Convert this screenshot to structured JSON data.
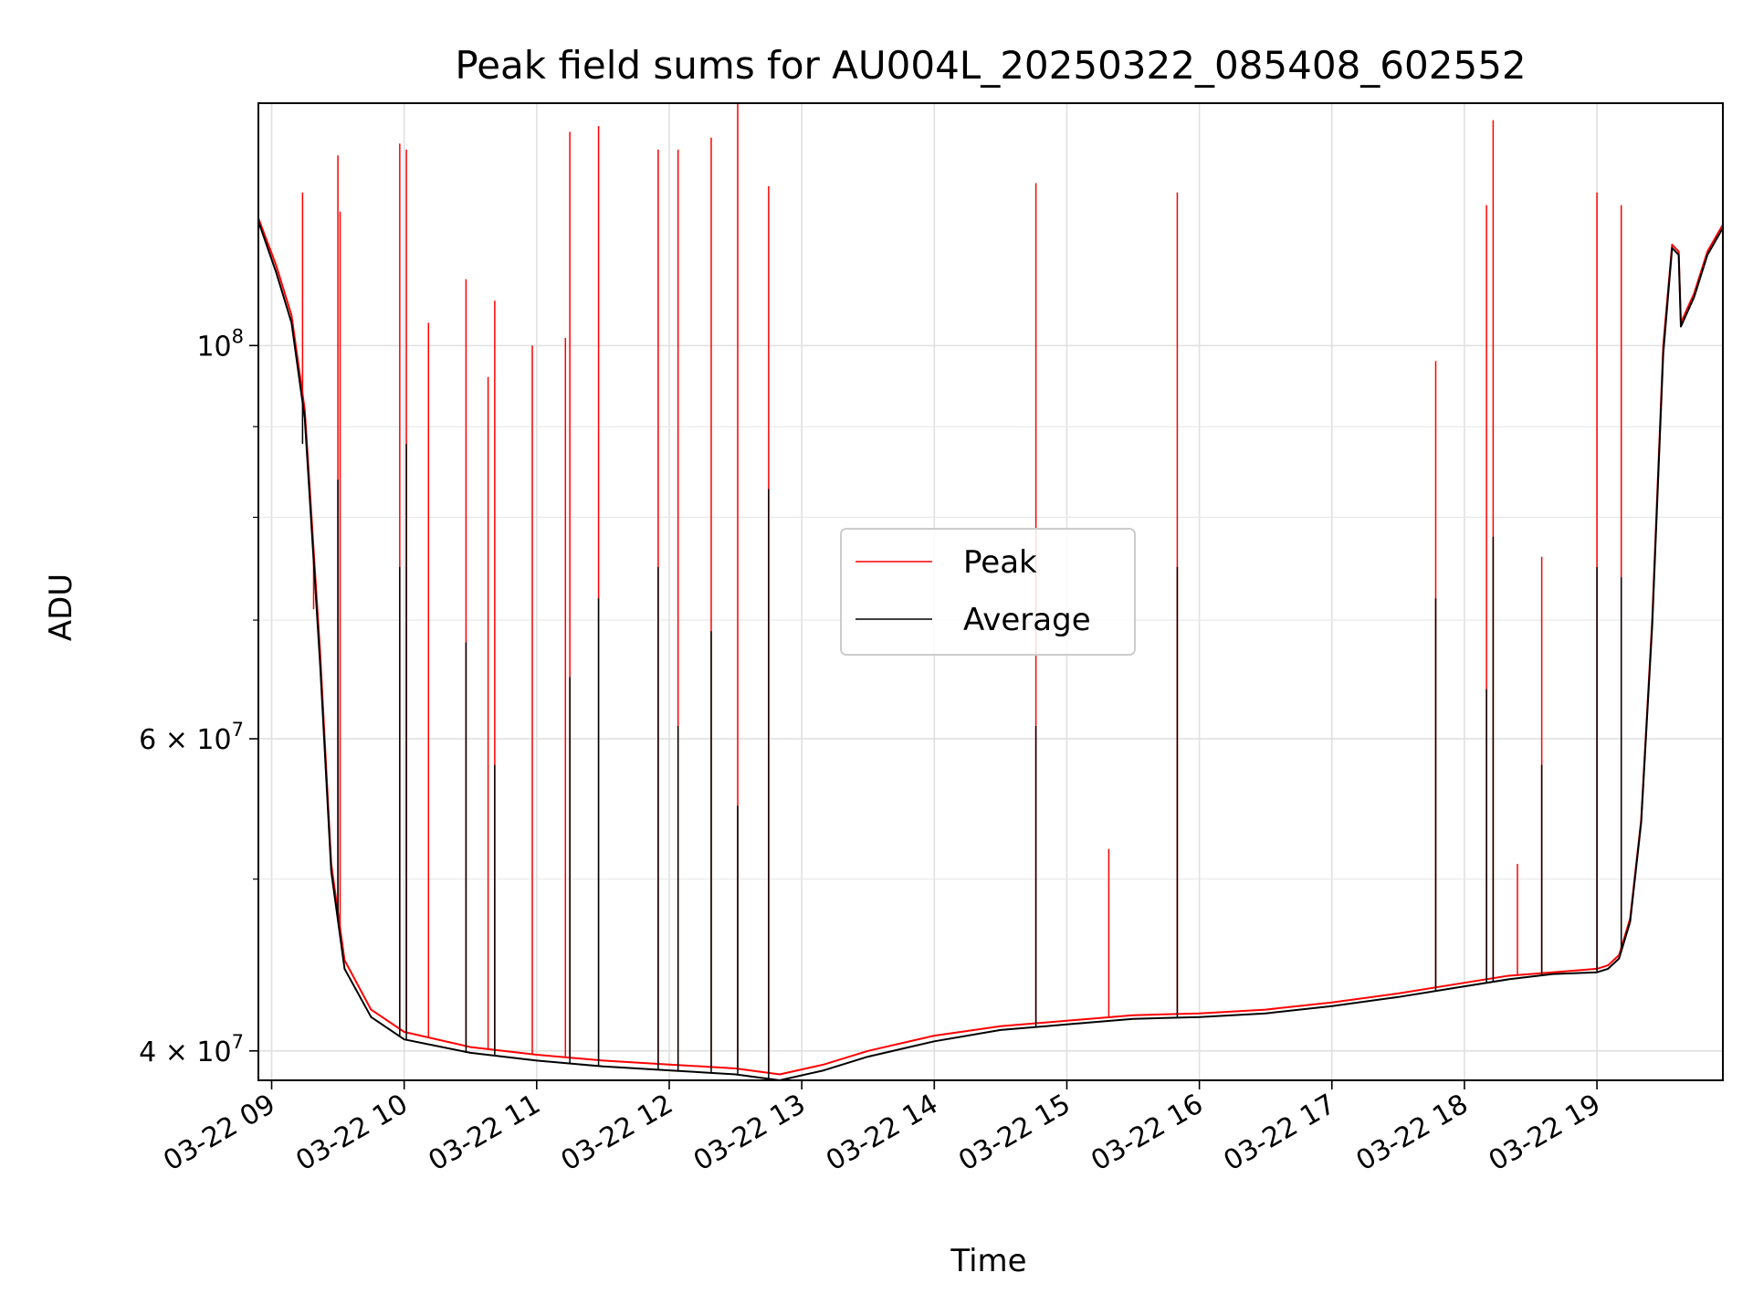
{
  "chart_data": {
    "type": "line",
    "title": "Peak field sums for AU004L_20250322_085408_602552",
    "xlabel": "Time",
    "ylabel": "ADU",
    "yscale": "log",
    "xlim": [
      "2025-03-22 08:54",
      "2025-03-22 19:57"
    ],
    "ylim": [
      38500000,
      137000000
    ],
    "grid": true,
    "legend_position": "center",
    "x_ticks": [
      {
        "label": "03-22 09",
        "value": "2025-03-22 09:00"
      },
      {
        "label": "03-22 10",
        "value": "2025-03-22 10:00"
      },
      {
        "label": "03-22 11",
        "value": "2025-03-22 11:00"
      },
      {
        "label": "03-22 12",
        "value": "2025-03-22 12:00"
      },
      {
        "label": "03-22 13",
        "value": "2025-03-22 13:00"
      },
      {
        "label": "03-22 14",
        "value": "2025-03-22 14:00"
      },
      {
        "label": "03-22 15",
        "value": "2025-03-22 15:00"
      },
      {
        "label": "03-22 16",
        "value": "2025-03-22 16:00"
      },
      {
        "label": "03-22 17",
        "value": "2025-03-22 17:00"
      },
      {
        "label": "03-22 18",
        "value": "2025-03-22 18:00"
      },
      {
        "label": "03-22 19",
        "value": "2025-03-22 19:00"
      }
    ],
    "y_major_ticks": [
      {
        "value": 40000000,
        "base": "4",
        "exp": "7"
      },
      {
        "value": 60000000,
        "base": "6",
        "exp": "7"
      },
      {
        "value": 100000000,
        "base": "",
        "exp": "8"
      }
    ],
    "y_minor_ticks": [
      50000000,
      70000000,
      80000000,
      90000000
    ],
    "series": [
      {
        "name": "Peak",
        "color": "#ff0000",
        "baseline": [
          [
            "2025-03-22 08:54",
            118000000
          ],
          [
            "2025-03-22 09:02",
            111000000
          ],
          [
            "2025-03-22 09:09",
            104000000
          ],
          [
            "2025-03-22 09:15",
            92000000
          ],
          [
            "2025-03-22 09:22",
            67000000
          ],
          [
            "2025-03-22 09:27",
            51000000
          ],
          [
            "2025-03-22 09:33",
            45000000
          ],
          [
            "2025-03-22 09:45",
            42200000
          ],
          [
            "2025-03-22 10:00",
            41000000
          ],
          [
            "2025-03-22 10:30",
            40200000
          ],
          [
            "2025-03-22 11:00",
            39800000
          ],
          [
            "2025-03-22 11:30",
            39500000
          ],
          [
            "2025-03-22 12:00",
            39300000
          ],
          [
            "2025-03-22 12:30",
            39100000
          ],
          [
            "2025-03-22 12:50",
            38800000
          ],
          [
            "2025-03-22 13:10",
            39300000
          ],
          [
            "2025-03-22 13:30",
            40000000
          ],
          [
            "2025-03-22 14:00",
            40800000
          ],
          [
            "2025-03-22 14:30",
            41300000
          ],
          [
            "2025-03-22 15:00",
            41600000
          ],
          [
            "2025-03-22 15:30",
            41900000
          ],
          [
            "2025-03-22 16:00",
            42000000
          ],
          [
            "2025-03-22 16:30",
            42200000
          ],
          [
            "2025-03-22 17:00",
            42600000
          ],
          [
            "2025-03-22 17:30",
            43100000
          ],
          [
            "2025-03-22 18:00",
            43700000
          ],
          [
            "2025-03-22 18:20",
            44100000
          ],
          [
            "2025-03-22 18:40",
            44300000
          ],
          [
            "2025-03-22 19:00",
            44500000
          ],
          [
            "2025-03-22 19:05",
            44700000
          ],
          [
            "2025-03-22 19:10",
            45300000
          ],
          [
            "2025-03-22 19:15",
            47500000
          ],
          [
            "2025-03-22 19:20",
            54000000
          ],
          [
            "2025-03-22 19:25",
            70000000
          ],
          [
            "2025-03-22 19:30",
            100000000
          ],
          [
            "2025-03-22 19:34",
            114000000
          ],
          [
            "2025-03-22 19:37",
            113000000
          ],
          [
            "2025-03-22 19:38",
            103000000
          ],
          [
            "2025-03-22 19:44",
            107000000
          ],
          [
            "2025-03-22 19:50",
            113000000
          ],
          [
            "2025-03-22 19:57",
            117000000
          ]
        ],
        "spikes": [
          [
            "2025-03-22 09:14",
            122000000
          ],
          [
            "2025-03-22 09:19",
            71000000
          ],
          [
            "2025-03-22 09:30",
            128000000
          ],
          [
            "2025-03-22 09:31",
            119000000
          ],
          [
            "2025-03-22 09:58",
            130000000
          ],
          [
            "2025-03-22 10:01",
            129000000
          ],
          [
            "2025-03-22 10:11",
            103000000
          ],
          [
            "2025-03-22 10:28",
            109000000
          ],
          [
            "2025-03-22 10:38",
            96000000
          ],
          [
            "2025-03-22 10:41",
            106000000
          ],
          [
            "2025-03-22 10:58",
            100000000
          ],
          [
            "2025-03-22 11:13",
            101000000
          ],
          [
            "2025-03-22 11:15",
            132000000
          ],
          [
            "2025-03-22 11:28",
            133000000
          ],
          [
            "2025-03-22 11:55",
            129000000
          ],
          [
            "2025-03-22 12:04",
            129000000
          ],
          [
            "2025-03-22 12:19",
            131000000
          ],
          [
            "2025-03-22 12:31",
            137000000
          ],
          [
            "2025-03-22 12:45",
            123000000
          ],
          [
            "2025-03-22 14:46",
            123500000
          ],
          [
            "2025-03-22 15:19",
            52000000
          ],
          [
            "2025-03-22 15:50",
            122000000
          ],
          [
            "2025-03-22 17:47",
            98000000
          ],
          [
            "2025-03-22 18:10",
            120000000
          ],
          [
            "2025-03-22 18:13",
            134000000
          ],
          [
            "2025-03-22 18:24",
            51000000
          ],
          [
            "2025-03-22 18:35",
            76000000
          ],
          [
            "2025-03-22 19:00",
            122000000
          ],
          [
            "2025-03-22 19:11",
            120000000
          ]
        ]
      },
      {
        "name": "Average",
        "color": "#000000",
        "baseline": [
          [
            "2025-03-22 08:54",
            117500000
          ],
          [
            "2025-03-22 09:02",
            110000000
          ],
          [
            "2025-03-22 09:09",
            103000000
          ],
          [
            "2025-03-22 09:15",
            91000000
          ],
          [
            "2025-03-22 09:22",
            66000000
          ],
          [
            "2025-03-22 09:27",
            50500000
          ],
          [
            "2025-03-22 09:33",
            44500000
          ],
          [
            "2025-03-22 09:45",
            41800000
          ],
          [
            "2025-03-22 10:00",
            40600000
          ],
          [
            "2025-03-22 10:30",
            39900000
          ],
          [
            "2025-03-22 11:00",
            39500000
          ],
          [
            "2025-03-22 11:30",
            39200000
          ],
          [
            "2025-03-22 12:00",
            39000000
          ],
          [
            "2025-03-22 12:30",
            38800000
          ],
          [
            "2025-03-22 12:50",
            38500000
          ],
          [
            "2025-03-22 13:10",
            39000000
          ],
          [
            "2025-03-22 13:30",
            39700000
          ],
          [
            "2025-03-22 14:00",
            40500000
          ],
          [
            "2025-03-22 14:30",
            41100000
          ],
          [
            "2025-03-22 15:00",
            41400000
          ],
          [
            "2025-03-22 15:30",
            41700000
          ],
          [
            "2025-03-22 16:00",
            41800000
          ],
          [
            "2025-03-22 16:30",
            42000000
          ],
          [
            "2025-03-22 17:00",
            42400000
          ],
          [
            "2025-03-22 17:30",
            42900000
          ],
          [
            "2025-03-22 18:00",
            43500000
          ],
          [
            "2025-03-22 18:20",
            43900000
          ],
          [
            "2025-03-22 18:40",
            44200000
          ],
          [
            "2025-03-22 19:00",
            44300000
          ],
          [
            "2025-03-22 19:05",
            44500000
          ],
          [
            "2025-03-22 19:10",
            45100000
          ],
          [
            "2025-03-22 19:15",
            47300000
          ],
          [
            "2025-03-22 19:20",
            53800000
          ],
          [
            "2025-03-22 19:25",
            69500000
          ],
          [
            "2025-03-22 19:30",
            99000000
          ],
          [
            "2025-03-22 19:34",
            113500000
          ],
          [
            "2025-03-22 19:37",
            112500000
          ],
          [
            "2025-03-22 19:38",
            102500000
          ],
          [
            "2025-03-22 19:44",
            106500000
          ],
          [
            "2025-03-22 19:50",
            112500000
          ],
          [
            "2025-03-22 19:57",
            116500000
          ]
        ],
        "spikes": [
          [
            "2025-03-22 09:14",
            88000000
          ],
          [
            "2025-03-22 09:30",
            84000000
          ],
          [
            "2025-03-22 09:58",
            75000000
          ],
          [
            "2025-03-22 10:01",
            88000000
          ],
          [
            "2025-03-22 10:28",
            68000000
          ],
          [
            "2025-03-22 10:41",
            58000000
          ],
          [
            "2025-03-22 11:15",
            65000000
          ],
          [
            "2025-03-22 11:28",
            72000000
          ],
          [
            "2025-03-22 11:55",
            75000000
          ],
          [
            "2025-03-22 12:04",
            61000000
          ],
          [
            "2025-03-22 12:19",
            69000000
          ],
          [
            "2025-03-22 12:31",
            55000000
          ],
          [
            "2025-03-22 12:45",
            83000000
          ],
          [
            "2025-03-22 14:46",
            61000000
          ],
          [
            "2025-03-22 15:50",
            75000000
          ],
          [
            "2025-03-22 17:47",
            72000000
          ],
          [
            "2025-03-22 18:10",
            64000000
          ],
          [
            "2025-03-22 18:13",
            78000000
          ],
          [
            "2025-03-22 18:35",
            58000000
          ],
          [
            "2025-03-22 19:00",
            75000000
          ],
          [
            "2025-03-22 19:11",
            74000000
          ]
        ]
      }
    ]
  }
}
